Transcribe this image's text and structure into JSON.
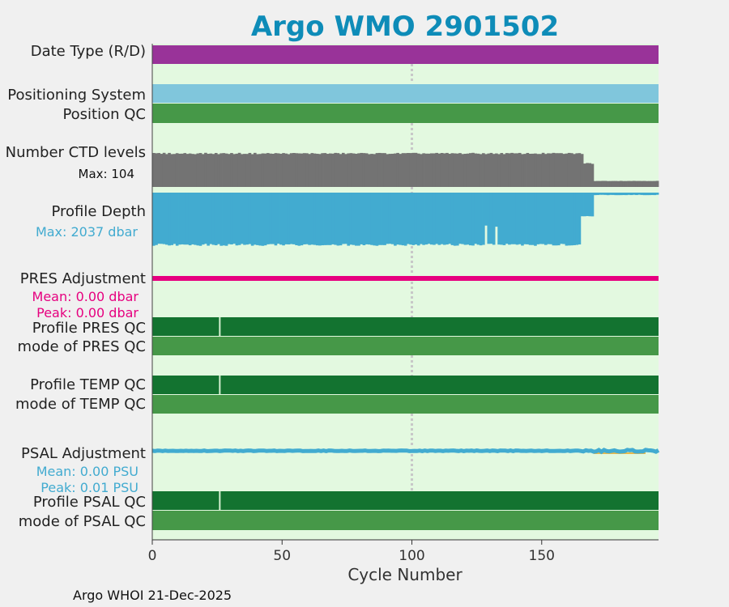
{
  "colors": {
    "panel_background": "#e3f9e0",
    "page_background": "#f0f0f0",
    "title": "#0e8cb8",
    "date_type": "#993399",
    "positioning_system": "#80c6dc",
    "qc_good_light": "#469848",
    "qc_good_dark": "#137330",
    "ctd_levels": "#737373",
    "profile_depth": "#42abd0",
    "pres_adjustment": "#e6007f",
    "psal_adjustment": "#42abd0",
    "psal_adjustment_secondary": "#e8b84a",
    "reference_line": "#c8c8c8",
    "qc_tick": "#d5efd0"
  },
  "chart_data": {
    "type": "bar",
    "title": "Argo WMO 2901502",
    "xlabel": "Cycle Number",
    "xlim": [
      0,
      195
    ],
    "xticks": [
      "0",
      "50",
      "100",
      "150"
    ],
    "xtick_values": [
      0,
      50,
      100,
      150
    ],
    "reference_line_cycle": 100,
    "rows": [
      {
        "label": "Date Type (R/D)",
        "kind": "band",
        "color_key": "date_type"
      },
      {
        "label": "Positioning System",
        "kind": "band",
        "color_key": "positioning_system"
      },
      {
        "label": "Position QC",
        "kind": "band",
        "color_key": "qc_good_light"
      },
      {
        "label": "Number CTD levels",
        "kind": "bars",
        "max_label": "Max: 104",
        "max_value": 104,
        "values_by_segment": [
          {
            "from": 0,
            "to": 166,
            "value": 100
          },
          {
            "from": 166,
            "to": 170,
            "value": 70
          },
          {
            "from": 170,
            "to": 195,
            "value": 18
          }
        ]
      },
      {
        "label": "Profile Depth",
        "kind": "bars",
        "max_label": "Max: 2037 dbar",
        "max_value": 2037,
        "values_by_segment": [
          {
            "from": 0,
            "to": 128,
            "value": 1990
          },
          {
            "from": 128,
            "to": 129,
            "value": 1270
          },
          {
            "from": 129,
            "to": 132,
            "value": 1990
          },
          {
            "from": 132,
            "to": 133,
            "value": 1330
          },
          {
            "from": 133,
            "to": 165,
            "value": 1990
          },
          {
            "from": 165,
            "to": 170,
            "value": 900
          },
          {
            "from": 170,
            "to": 195,
            "value": 90
          }
        ]
      },
      {
        "label": "PRES Adjustment",
        "kind": "line",
        "color_key": "pres_adjustment",
        "stats": [
          "Mean: 0.00 dbar",
          "Peak: 0.00 dbar"
        ],
        "value": 0.0
      },
      {
        "label": "Profile PRES QC",
        "kind": "band",
        "color_key": "qc_good_dark",
        "tick_cycle": 26
      },
      {
        "label": "mode of PRES QC",
        "kind": "band",
        "color_key": "qc_good_light"
      },
      {
        "label": "Profile TEMP QC",
        "kind": "band",
        "color_key": "qc_good_dark",
        "tick_cycle": 26
      },
      {
        "label": "mode of TEMP QC",
        "kind": "band",
        "color_key": "qc_good_light"
      },
      {
        "label": "PSAL Adjustment",
        "kind": "line",
        "color_key": "psal_adjustment",
        "stats": [
          "Mean: 0.00 PSU",
          "Peak: 0.01 PSU"
        ],
        "value": 0.0
      },
      {
        "label": "Profile PSAL QC",
        "kind": "band",
        "color_key": "qc_good_dark",
        "tick_cycle": 26
      },
      {
        "label": "mode of PSAL QC",
        "kind": "band",
        "color_key": "qc_good_light"
      }
    ]
  },
  "footer": "Argo WHOI 21-Dec-2025"
}
